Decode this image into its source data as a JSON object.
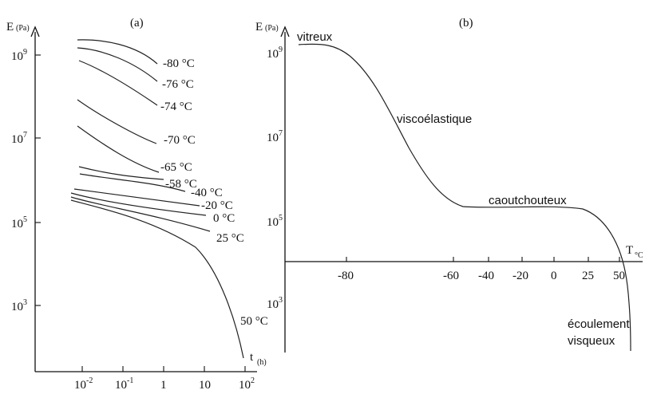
{
  "chart_data": [
    {
      "type": "line",
      "title": "(a)",
      "ylabel": "E (Pa)",
      "xlabel": "t (h)",
      "x_scale": "log",
      "y_scale": "log",
      "x_ticks": [
        "10^-2",
        "10^-1",
        "1",
        "10",
        "10^2"
      ],
      "y_ticks": [
        "10^9",
        "10^7",
        "10^5",
        "10^3"
      ],
      "series": [
        {
          "name": "-80 °C",
          "x": [
            0.005,
            0.03,
            0.2,
            1.0
          ],
          "y": [
            2000000000.0,
            1900000000.0,
            1300000000.0,
            600000000.0
          ]
        },
        {
          "name": "-76 °C",
          "x": [
            0.005,
            0.03,
            0.2,
            1.0
          ],
          "y": [
            1300000000.0,
            1000000000.0,
            600000000.0,
            250000000.0
          ]
        },
        {
          "name": "-74 °C",
          "x": [
            0.005,
            0.03,
            0.2,
            1.0
          ],
          "y": [
            650000000.0,
            400000000.0,
            140000000.0,
            50000000.0
          ]
        },
        {
          "name": "-70 °C",
          "x": [
            0.005,
            0.03,
            0.2,
            1.0
          ],
          "y": [
            100000000.0,
            40000000.0,
            15000000.0,
            6000000.0
          ]
        },
        {
          "name": "-65 °C",
          "x": [
            0.005,
            0.03,
            0.2,
            1.0
          ],
          "y": [
            14000000.0,
            6000000.0,
            3000000.0,
            1800000.0
          ]
        },
        {
          "name": "-58 °C",
          "x": [
            0.005,
            0.03,
            0.2,
            1.0,
            3.0
          ],
          "y": [
            2200000.0,
            1700000.0,
            1300000.0,
            1100000.0,
            1000000.0
          ]
        },
        {
          "name": "-40 °C",
          "x": [
            0.005,
            0.05,
            1.0,
            10.0
          ],
          "y": [
            1200000.0,
            1100000.0,
            1000000.0,
            950000.0
          ]
        },
        {
          "name": "-20 °C",
          "x": [
            0.005,
            0.05,
            1.0,
            10.0
          ],
          "y": [
            950000.0,
            850000.0,
            700000.0,
            550000.0
          ]
        },
        {
          "name": "0 °C",
          "x": [
            0.005,
            0.05,
            1.0,
            10.0
          ],
          "y": [
            850000.0,
            650000.0,
            450000.0,
            300000.0
          ]
        },
        {
          "name": "25 °C",
          "x": [
            0.005,
            0.05,
            1.0,
            10.0
          ],
          "y": [
            750000.0,
            500000.0,
            250000.0,
            120000.0
          ]
        },
        {
          "name": "50 °C",
          "x": [
            0.005,
            0.05,
            1.0,
            10.0,
            40.0,
            80.0
          ],
          "y": [
            700000.0,
            400000.0,
            120000.0,
            20000.0,
            1000.0,
            100.0
          ]
        }
      ]
    },
    {
      "type": "line",
      "title": "(b)",
      "ylabel": "E (Pa)",
      "xlabel": "T °C",
      "y_scale": "log",
      "x_ticks": [
        "-80",
        "-60",
        "-40",
        "-20",
        "0",
        "25",
        "50"
      ],
      "y_ticks": [
        "10^9",
        "10^7",
        "10^5",
        "10^3"
      ],
      "x": [
        -95,
        -80,
        -70,
        -60,
        -40,
        -20,
        0,
        25,
        40,
        50,
        55
      ],
      "y": [
        2000000000.0,
        1500000000.0,
        300000000.0,
        5000000.0,
        300000.0,
        300000.0,
        250000.0,
        150000.0,
        30000.0,
        1000.0,
        100.0
      ],
      "annotations": [
        "vitreux",
        "viscoélastique",
        "caoutchouteux",
        "écoulement",
        "visqueux"
      ]
    }
  ]
}
